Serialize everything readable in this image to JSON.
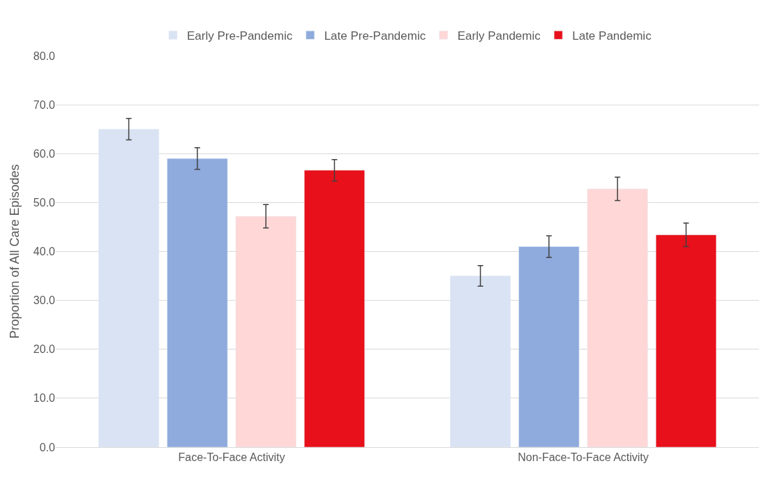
{
  "chart_data": {
    "type": "bar",
    "ylabel": "Proportion of All Care Episodes",
    "categories": [
      "Face-To-Face Activity",
      "Non-Face-To-Face Activity"
    ],
    "series": [
      {
        "name": "Early Pre-Pandemic",
        "color": "#dae3f3",
        "values": [
          65.0,
          35.0
        ],
        "errors": [
          2.2,
          2.1
        ]
      },
      {
        "name": "Late Pre-Pandemic",
        "color": "#8faadc",
        "values": [
          59.0,
          41.0
        ],
        "errors": [
          2.2,
          2.2
        ]
      },
      {
        "name": "Early Pandemic",
        "color": "#ffd7d7",
        "values": [
          47.2,
          52.8
        ],
        "errors": [
          2.4,
          2.4
        ]
      },
      {
        "name": "Late Pandemic",
        "color": "#e8101a",
        "values": [
          56.6,
          43.4
        ],
        "errors": [
          2.2,
          2.4
        ]
      }
    ],
    "ylim": [
      0,
      80
    ],
    "yticks": [
      {
        "value": 0,
        "label": "0.0"
      },
      {
        "value": 10,
        "label": "10.0"
      },
      {
        "value": 20,
        "label": "20.0"
      },
      {
        "value": 30,
        "label": "30.0"
      },
      {
        "value": 40,
        "label": "40.0"
      },
      {
        "value": 50,
        "label": "50.0"
      },
      {
        "value": 60,
        "label": "60.0"
      },
      {
        "value": 70,
        "label": "70.0"
      },
      {
        "value": 80,
        "label": "80.0"
      }
    ],
    "grid": "y",
    "legend": "top"
  }
}
